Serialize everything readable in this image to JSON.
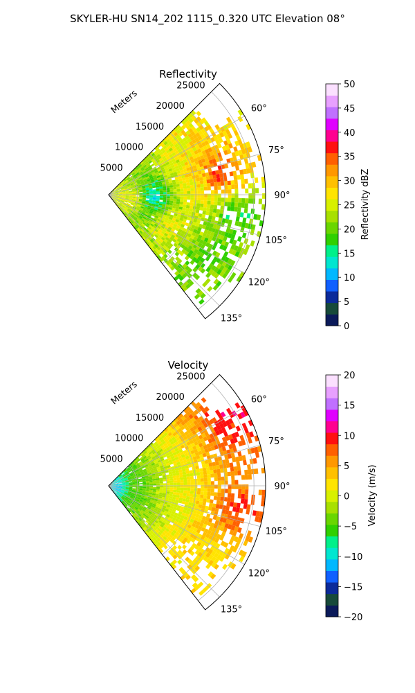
{
  "suptitle": "SKYLER-HU  SN14_202  1115_0.320 UTC Elevation 08°",
  "chart_data": [
    {
      "type": "heatmap",
      "projection": "polar-sector",
      "title": "Reflectivity",
      "radial_axis_label": "Meters",
      "radial_ticks": [
        5000,
        10000,
        15000,
        20000,
        25000
      ],
      "radial_tick_labels": [
        "5000",
        "10000",
        "15000",
        "20000",
        "25000"
      ],
      "rlim": [
        0,
        27000
      ],
      "azimuth_ticks": [
        60,
        75,
        90,
        105,
        120,
        135
      ],
      "azimuth_tick_labels": [
        "60°",
        "75°",
        "90°",
        "105°",
        "120°",
        "135°"
      ],
      "azimuth_range_deg": [
        45,
        142
      ],
      "grid": true,
      "colorbar": {
        "label": "Reflectivity dBZ",
        "range": [
          0,
          50
        ],
        "ticks": [
          0,
          5,
          10,
          15,
          20,
          25,
          30,
          35,
          40,
          45,
          50
        ],
        "tick_labels": [
          "0",
          "5",
          "10",
          "15",
          "20",
          "25",
          "30",
          "35",
          "40",
          "45",
          "50"
        ]
      },
      "field_features": [
        {
          "azimuth_deg": 80,
          "range_m": 19000,
          "value": 37
        },
        {
          "azimuth_deg": 82,
          "range_m": 15000,
          "value": 27
        },
        {
          "azimuth_deg": 95,
          "range_m": 8000,
          "value": 12
        },
        {
          "azimuth_deg": 115,
          "range_m": 12000,
          "value": 26
        },
        {
          "azimuth_deg": 100,
          "range_m": 4000,
          "value": 26
        },
        {
          "azimuth_deg": 100,
          "range_m": 22000,
          "value": 17
        },
        {
          "azimuth_deg": 125,
          "range_m": 20000,
          "value": 19
        }
      ]
    },
    {
      "type": "heatmap",
      "projection": "polar-sector",
      "title": "Velocity",
      "radial_axis_label": "Meters",
      "radial_ticks": [
        5000,
        10000,
        15000,
        20000,
        25000
      ],
      "radial_tick_labels": [
        "5000",
        "10000",
        "15000",
        "20000",
        "25000"
      ],
      "rlim": [
        0,
        27000
      ],
      "azimuth_ticks": [
        60,
        75,
        90,
        105,
        120,
        135
      ],
      "azimuth_tick_labels": [
        "60°",
        "75°",
        "90°",
        "105°",
        "120°",
        "135°"
      ],
      "azimuth_range_deg": [
        45,
        142
      ],
      "grid": true,
      "colorbar": {
        "label": "Velocity (m/s)",
        "range": [
          -20,
          20
        ],
        "ticks": [
          -20,
          -15,
          -10,
          -5,
          0,
          5,
          10,
          15,
          20
        ],
        "tick_labels": [
          "−20",
          "−15",
          "−10",
          "−5",
          "0",
          "5",
          "10",
          "15",
          "20"
        ]
      },
      "field_features": [
        {
          "azimuth_deg": 95,
          "range_m": 1500,
          "value": -11
        },
        {
          "azimuth_deg": 95,
          "range_m": 5000,
          "value": -4
        },
        {
          "azimuth_deg": 90,
          "range_m": 12000,
          "value": 1
        },
        {
          "azimuth_deg": 62,
          "range_m": 25000,
          "value": 10
        },
        {
          "azimuth_deg": 100,
          "range_m": 23000,
          "value": 9
        },
        {
          "azimuth_deg": 125,
          "range_m": 22000,
          "value": 2
        }
      ]
    }
  ],
  "colors": {
    "reflectivity_scale": [
      "#0b1a5a",
      "#174a3a",
      "#0b2a9a",
      "#1060ff",
      "#00b8ff",
      "#00e6d0",
      "#00f08a",
      "#30d000",
      "#6ad600",
      "#a8e000",
      "#d8f000",
      "#ffe400",
      "#ffc000",
      "#ff9800",
      "#ff6000",
      "#ff1010",
      "#ff0090",
      "#e000ff",
      "#c070ff",
      "#e8a0ff",
      "#fbe0ff"
    ],
    "velocity_scale": [
      "#0b1a5a",
      "#174a3a",
      "#0b2a9a",
      "#1060ff",
      "#00b8ff",
      "#00e6d0",
      "#00f08a",
      "#30d000",
      "#6ad600",
      "#a8e000",
      "#d8f000",
      "#ffe400",
      "#ffc000",
      "#ff9800",
      "#ff6000",
      "#ff1010",
      "#ff0090",
      "#e000ff",
      "#c070ff",
      "#e8a0ff",
      "#fbe0ff"
    ],
    "grid": "#b0b0b0"
  }
}
